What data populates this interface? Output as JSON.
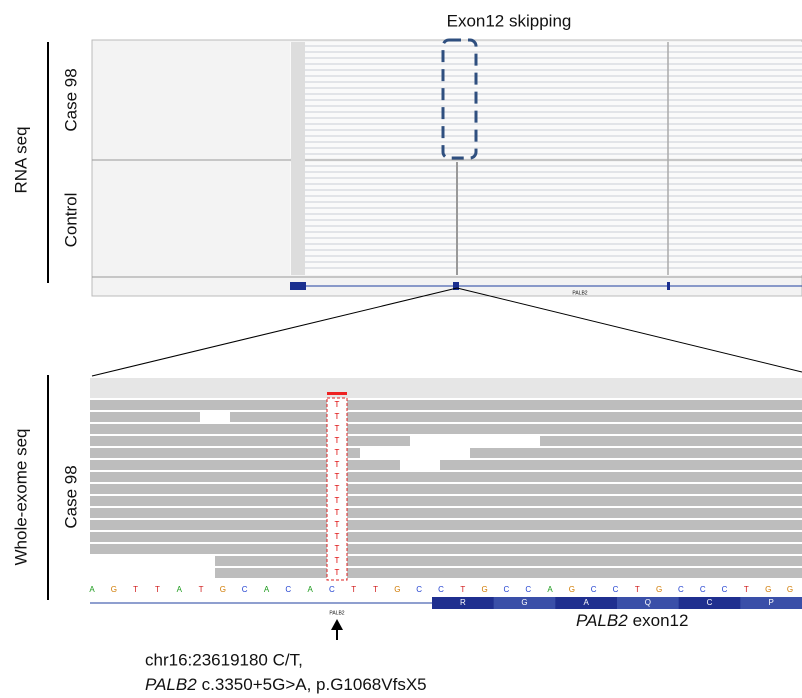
{
  "top_panel": {
    "annotation": "Exon12 skipping",
    "group_label": "RNA seq",
    "tracks": [
      "Case 98",
      "Control"
    ],
    "gene_label": "PALB2"
  },
  "bottom_panel": {
    "group_label": "Whole-exome seq",
    "track": "Case 98",
    "variant_base": "T",
    "sequence": [
      "A",
      "G",
      "T",
      "T",
      "A",
      "T",
      "G",
      "C",
      "A",
      "C",
      "A",
      "C",
      "T",
      "T",
      "G",
      "C",
      "C",
      "T",
      "G",
      "C",
      "C",
      "A",
      "G",
      "C",
      "C",
      "T",
      "G",
      "C",
      "C",
      "C",
      "T",
      "G",
      "G"
    ],
    "amino_acids": [
      "R",
      "G",
      "A",
      "Q",
      "C",
      "P"
    ],
    "gene_label": "PALB2",
    "exon_label": {
      "gene": "PALB2",
      "text": "exon12"
    }
  },
  "variant": {
    "line1": "chr16:23619180 C/T,",
    "gene": "PALB2",
    "line2": "c.3350+5G>A, p.G1068VfsX5"
  }
}
